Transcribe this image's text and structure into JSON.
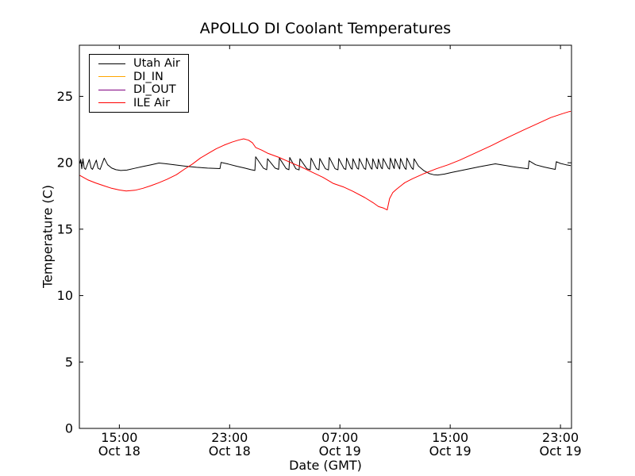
{
  "chart_data": {
    "type": "line",
    "title": "APOLLO DI Coolant Temperatures",
    "xlabel": "Date (GMT)",
    "ylabel": "Temperature (C)",
    "legend_position": "upper left",
    "grid": false,
    "axes": {
      "x_unit": "hours since Oct 18 00:00 GMT",
      "xlim": [
        12.1,
        47.8
      ],
      "ylim": [
        0,
        28.85
      ],
      "xticks": [
        {
          "value": 15,
          "time": "15:00",
          "date": "Oct 18"
        },
        {
          "value": 23,
          "time": "23:00",
          "date": "Oct 18"
        },
        {
          "value": 31,
          "time": "07:00",
          "date": "Oct 19"
        },
        {
          "value": 39,
          "time": "15:00",
          "date": "Oct 19"
        },
        {
          "value": 47,
          "time": "23:00",
          "date": "Oct 19"
        }
      ],
      "yticks": [
        0,
        5,
        10,
        15,
        20,
        25
      ]
    },
    "series": [
      {
        "name": "Utah Air",
        "color": "#000000",
        "points": [
          [
            12.13,
            19.95
          ],
          [
            12.2,
            20.25
          ],
          [
            12.27,
            19.55
          ],
          [
            12.36,
            20.3
          ],
          [
            12.45,
            19.6
          ],
          [
            12.55,
            19.5
          ],
          [
            12.82,
            20.25
          ],
          [
            12.95,
            19.6
          ],
          [
            13.05,
            19.5
          ],
          [
            13.33,
            20.2
          ],
          [
            13.45,
            19.6
          ],
          [
            13.6,
            19.5
          ],
          [
            13.9,
            20.35
          ],
          [
            14.15,
            19.85
          ],
          [
            14.45,
            19.6
          ],
          [
            14.75,
            19.48
          ],
          [
            15.1,
            19.42
          ],
          [
            15.55,
            19.45
          ],
          [
            16.1,
            19.58
          ],
          [
            16.7,
            19.72
          ],
          [
            17.3,
            19.85
          ],
          [
            17.87,
            19.98
          ],
          [
            18.3,
            19.93
          ],
          [
            19.0,
            19.84
          ],
          [
            19.8,
            19.74
          ],
          [
            20.6,
            19.66
          ],
          [
            21.4,
            19.6
          ],
          [
            22.3,
            19.56
          ],
          [
            22.38,
            20.02
          ],
          [
            22.9,
            19.9
          ],
          [
            23.5,
            19.74
          ],
          [
            24.1,
            19.6
          ],
          [
            24.55,
            19.48
          ],
          [
            24.83,
            19.42
          ],
          [
            24.89,
            20.45
          ],
          [
            25.45,
            19.6
          ],
          [
            25.69,
            19.48
          ],
          [
            25.75,
            20.3
          ],
          [
            26.3,
            19.6
          ],
          [
            26.55,
            19.5
          ],
          [
            26.61,
            20.35
          ],
          [
            27.1,
            19.56
          ],
          [
            27.3,
            19.48
          ],
          [
            27.36,
            20.4
          ],
          [
            27.8,
            19.55
          ],
          [
            28.04,
            19.46
          ],
          [
            28.1,
            20.3
          ],
          [
            28.6,
            19.55
          ],
          [
            28.85,
            19.47
          ],
          [
            28.91,
            20.35
          ],
          [
            29.3,
            19.55
          ],
          [
            29.48,
            19.47
          ],
          [
            29.54,
            20.32
          ],
          [
            29.95,
            19.55
          ],
          [
            30.17,
            19.46
          ],
          [
            30.23,
            20.4
          ],
          [
            30.65,
            19.55
          ],
          [
            30.86,
            19.47
          ],
          [
            30.92,
            20.32
          ],
          [
            31.3,
            19.56
          ],
          [
            31.43,
            19.5
          ],
          [
            31.49,
            20.35
          ],
          [
            31.8,
            19.6
          ],
          [
            31.89,
            19.52
          ],
          [
            31.95,
            20.3
          ],
          [
            32.25,
            19.6
          ],
          [
            32.35,
            19.52
          ],
          [
            32.41,
            20.32
          ],
          [
            32.75,
            19.58
          ],
          [
            32.87,
            19.5
          ],
          [
            32.93,
            20.35
          ],
          [
            33.25,
            19.6
          ],
          [
            33.33,
            19.52
          ],
          [
            33.39,
            20.3
          ],
          [
            33.65,
            19.62
          ],
          [
            33.73,
            19.55
          ],
          [
            33.79,
            20.28
          ],
          [
            34.0,
            19.62
          ],
          [
            34.08,
            19.55
          ],
          [
            34.14,
            20.32
          ],
          [
            34.5,
            19.6
          ],
          [
            34.6,
            19.52
          ],
          [
            34.66,
            20.35
          ],
          [
            34.9,
            19.63
          ],
          [
            34.94,
            19.56
          ],
          [
            35.0,
            20.3
          ],
          [
            35.3,
            19.6
          ],
          [
            35.34,
            19.53
          ],
          [
            35.4,
            20.32
          ],
          [
            35.7,
            19.6
          ],
          [
            35.8,
            19.5
          ],
          [
            35.86,
            20.35
          ],
          [
            36.2,
            19.62
          ],
          [
            36.32,
            19.5
          ],
          [
            36.38,
            20.3
          ],
          [
            36.7,
            19.75
          ],
          [
            37.1,
            19.4
          ],
          [
            37.5,
            19.18
          ],
          [
            37.8,
            19.1
          ],
          [
            38.1,
            19.08
          ],
          [
            38.6,
            19.15
          ],
          [
            39.1,
            19.27
          ],
          [
            39.7,
            19.4
          ],
          [
            40.4,
            19.55
          ],
          [
            41.1,
            19.7
          ],
          [
            41.8,
            19.83
          ],
          [
            42.28,
            19.92
          ],
          [
            42.8,
            19.83
          ],
          [
            43.4,
            19.73
          ],
          [
            44.0,
            19.64
          ],
          [
            44.66,
            19.55
          ],
          [
            44.72,
            20.15
          ],
          [
            45.2,
            19.85
          ],
          [
            45.8,
            19.68
          ],
          [
            46.3,
            19.57
          ],
          [
            46.62,
            19.5
          ],
          [
            46.7,
            20.08
          ],
          [
            47.0,
            19.95
          ],
          [
            47.4,
            19.85
          ],
          [
            47.75,
            19.78
          ]
        ]
      },
      {
        "name": "DI_IN",
        "color": "#ffa500",
        "points": []
      },
      {
        "name": "DI_OUT",
        "color": "#800080",
        "points": []
      },
      {
        "name": "ILE Air",
        "color": "#ff0000",
        "points": [
          [
            12.13,
            19.05
          ],
          [
            12.7,
            18.72
          ],
          [
            13.28,
            18.48
          ],
          [
            13.85,
            18.28
          ],
          [
            14.43,
            18.08
          ],
          [
            15.0,
            17.95
          ],
          [
            15.5,
            17.87
          ],
          [
            16.15,
            17.93
          ],
          [
            16.72,
            18.08
          ],
          [
            17.3,
            18.28
          ],
          [
            17.87,
            18.5
          ],
          [
            18.45,
            18.75
          ],
          [
            19.14,
            19.1
          ],
          [
            19.7,
            19.5
          ],
          [
            20.3,
            19.9
          ],
          [
            20.87,
            20.35
          ],
          [
            21.44,
            20.7
          ],
          [
            22.02,
            21.05
          ],
          [
            22.6,
            21.33
          ],
          [
            23.16,
            21.55
          ],
          [
            23.62,
            21.7
          ],
          [
            24.02,
            21.8
          ],
          [
            24.37,
            21.7
          ],
          [
            24.66,
            21.5
          ],
          [
            24.89,
            21.15
          ],
          [
            25.34,
            20.95
          ],
          [
            25.75,
            20.72
          ],
          [
            26.6,
            20.4
          ],
          [
            27.47,
            20.0
          ],
          [
            28.2,
            19.68
          ],
          [
            28.97,
            19.3
          ],
          [
            29.77,
            18.9
          ],
          [
            30.5,
            18.45
          ],
          [
            31.25,
            18.18
          ],
          [
            31.95,
            17.85
          ],
          [
            32.8,
            17.38
          ],
          [
            33.4,
            17.0
          ],
          [
            33.8,
            16.7
          ],
          [
            34.14,
            16.6
          ],
          [
            34.43,
            16.45
          ],
          [
            34.6,
            17.3
          ],
          [
            34.83,
            17.75
          ],
          [
            35.1,
            18.0
          ],
          [
            35.7,
            18.5
          ],
          [
            36.26,
            18.8
          ],
          [
            37.13,
            19.2
          ],
          [
            38.0,
            19.55
          ],
          [
            38.85,
            19.85
          ],
          [
            39.7,
            20.2
          ],
          [
            40.86,
            20.75
          ],
          [
            42.0,
            21.3
          ],
          [
            43.16,
            21.9
          ],
          [
            44.3,
            22.45
          ],
          [
            45.45,
            23.0
          ],
          [
            46.3,
            23.4
          ],
          [
            47.16,
            23.7
          ],
          [
            47.63,
            23.85
          ],
          [
            47.75,
            23.87
          ]
        ]
      }
    ],
    "colors": {
      "frame": "#000000",
      "background": "#ffffff",
      "text": "#000000"
    }
  }
}
